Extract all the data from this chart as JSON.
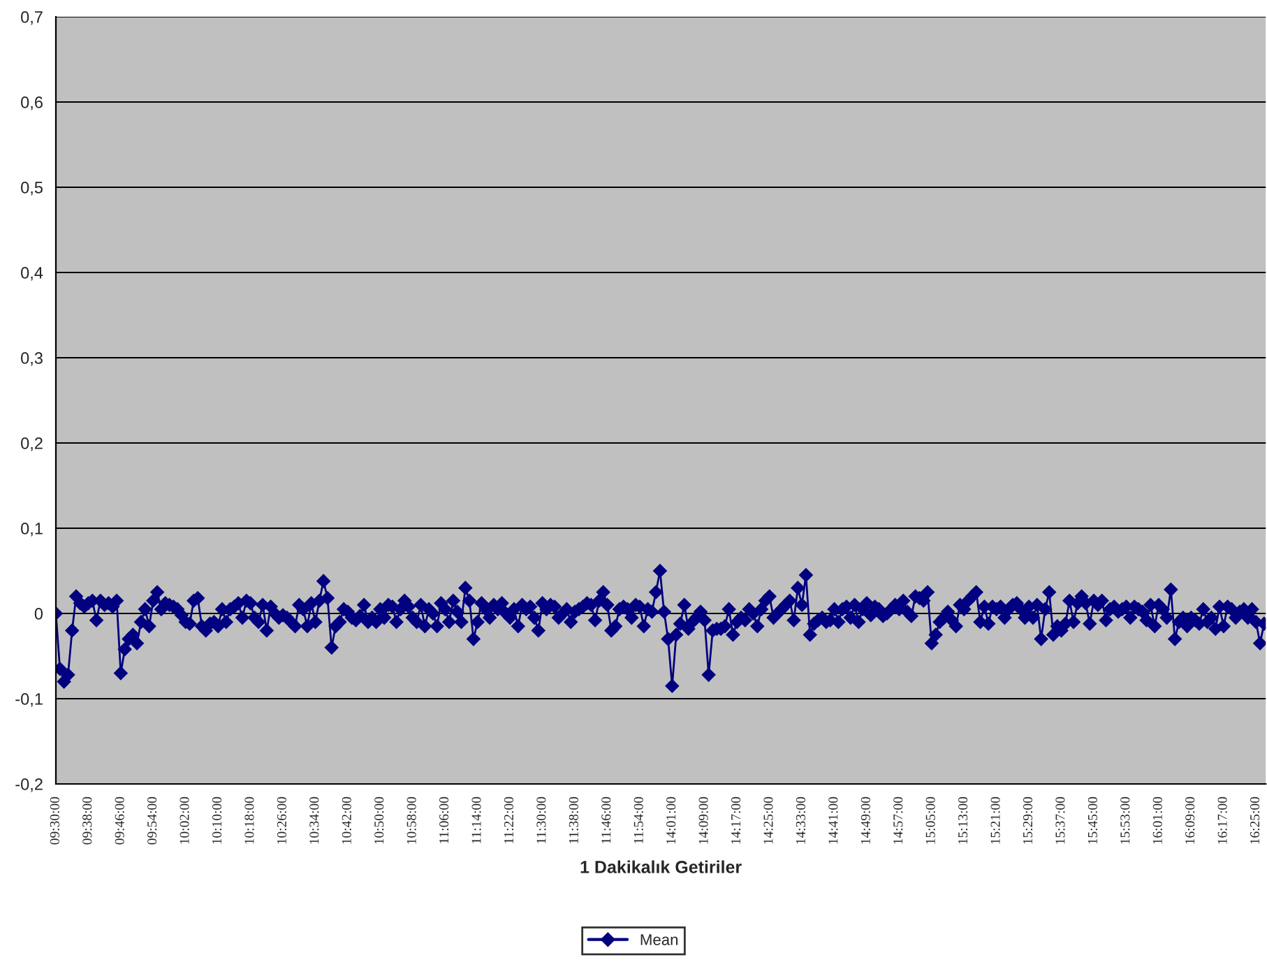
{
  "chart_data": {
    "type": "line",
    "xlabel": "1 Dakikalık Getiriler",
    "categories": [
      "09:30:00",
      null,
      null,
      null,
      null,
      null,
      null,
      null,
      "09:38:00",
      null,
      null,
      null,
      null,
      null,
      null,
      null,
      "09:46:00",
      null,
      null,
      null,
      null,
      null,
      null,
      null,
      "09:54:00",
      null,
      null,
      null,
      null,
      null,
      null,
      null,
      "10:02:00",
      null,
      null,
      null,
      null,
      null,
      null,
      null,
      "10:10:00",
      null,
      null,
      null,
      null,
      null,
      null,
      null,
      "10:18:00",
      null,
      null,
      null,
      null,
      null,
      null,
      null,
      "10:26:00",
      null,
      null,
      null,
      null,
      null,
      null,
      null,
      "10:34:00",
      null,
      null,
      null,
      null,
      null,
      null,
      null,
      "10:42:00",
      null,
      null,
      null,
      null,
      null,
      null,
      null,
      "10:50:00",
      null,
      null,
      null,
      null,
      null,
      null,
      null,
      "10:58:00",
      null,
      null,
      null,
      null,
      null,
      null,
      null,
      "11:06:00",
      null,
      null,
      null,
      null,
      null,
      null,
      null,
      "11:14:00",
      null,
      null,
      null,
      null,
      null,
      null,
      null,
      "11:22:00",
      null,
      null,
      null,
      null,
      null,
      null,
      null,
      "11:30:00",
      null,
      null,
      null,
      null,
      null,
      null,
      null,
      "11:38:00",
      null,
      null,
      null,
      null,
      null,
      null,
      null,
      "11:46:00",
      null,
      null,
      null,
      null,
      null,
      null,
      null,
      "11:54:00",
      null,
      null,
      null,
      null,
      null,
      null,
      null,
      "14:01:00",
      null,
      null,
      null,
      null,
      null,
      null,
      null,
      "14:09:00",
      null,
      null,
      null,
      null,
      null,
      null,
      null,
      "14:17:00",
      null,
      null,
      null,
      null,
      null,
      null,
      null,
      "14:25:00",
      null,
      null,
      null,
      null,
      null,
      null,
      null,
      "14:33:00",
      null,
      null,
      null,
      null,
      null,
      null,
      null,
      "14:41:00",
      null,
      null,
      null,
      null,
      null,
      null,
      null,
      "14:49:00",
      null,
      null,
      null,
      null,
      null,
      null,
      null,
      "14:57:00",
      null,
      null,
      null,
      null,
      null,
      null,
      null,
      "15:05:00",
      null,
      null,
      null,
      null,
      null,
      null,
      null,
      "15:13:00",
      null,
      null,
      null,
      null,
      null,
      null,
      null,
      "15:21:00",
      null,
      null,
      null,
      null,
      null,
      null,
      null,
      "15:29:00",
      null,
      null,
      null,
      null,
      null,
      null,
      null,
      "15:37:00",
      null,
      null,
      null,
      null,
      null,
      null,
      null,
      "15:45:00",
      null,
      null,
      null,
      null,
      null,
      null,
      null,
      "15:53:00",
      null,
      null,
      null,
      null,
      null,
      null,
      null,
      "16:01:00",
      null,
      null,
      null,
      null,
      null,
      null,
      null,
      "16:09:00",
      null,
      null,
      null,
      null,
      null,
      null,
      null,
      "16:17:00",
      null,
      null,
      null,
      null,
      null,
      null,
      null,
      "16:25:00",
      null,
      null
    ],
    "series": [
      {
        "name": "Mean",
        "color": "#000080",
        "values": [
          0,
          -0.065,
          -0.08,
          -0.072,
          -0.02,
          0.02,
          0.012,
          0.008,
          0.012,
          0.015,
          -0.008,
          0.015,
          0.01,
          0.012,
          0.008,
          0.015,
          -0.07,
          -0.042,
          -0.03,
          -0.025,
          -0.035,
          -0.01,
          0.005,
          -0.015,
          0.015,
          0.025,
          0.005,
          0.012,
          0.01,
          0.008,
          0.005,
          -0.002,
          -0.01,
          -0.012,
          0.015,
          0.018,
          -0.015,
          -0.02,
          -0.012,
          -0.01,
          -0.015,
          0.005,
          -0.01,
          0.005,
          0.008,
          0.012,
          -0.005,
          0.015,
          0.012,
          -0.005,
          -0.01,
          0.01,
          -0.02,
          0.008,
          0,
          -0.005,
          -0.002,
          -0.005,
          -0.01,
          -0.015,
          0.01,
          0.005,
          -0.015,
          0.012,
          -0.01,
          0.015,
          0.038,
          0.018,
          -0.04,
          -0.015,
          -0.01,
          0.005,
          0.002,
          -0.005,
          -0.008,
          -0.003,
          0.01,
          -0.01,
          -0.005,
          -0.01,
          0.005,
          -0.005,
          0.01,
          0.008,
          -0.01,
          0.005,
          0.015,
          0.008,
          -0.005,
          -0.01,
          0.01,
          -0.015,
          0.005,
          0,
          -0.015,
          0.012,
          0.005,
          -0.01,
          0.015,
          0.002,
          -0.01,
          0.03,
          0.015,
          -0.03,
          -0.01,
          0.012,
          0.005,
          -0.005,
          0.01,
          0.005,
          0.012,
          0,
          -0.005,
          0.005,
          -0.015,
          0.01,
          0.005,
          0.008,
          -0.005,
          -0.02,
          0.012,
          0.005,
          0.01,
          0.008,
          -0.005,
          0,
          0.005,
          -0.01,
          0.002,
          0.005,
          0.008,
          0.012,
          0.01,
          -0.008,
          0.015,
          0.025,
          0.01,
          -0.02,
          -0.015,
          0.005,
          0.008,
          0.005,
          -0.005,
          0.01,
          0.008,
          -0.015,
          0.005,
          0.002,
          0.025,
          0.05,
          0.002,
          -0.03,
          -0.085,
          -0.025,
          -0.012,
          0.01,
          -0.018,
          -0.01,
          -0.005,
          0.002,
          -0.008,
          -0.072,
          -0.02,
          -0.018,
          -0.018,
          -0.015,
          0.005,
          -0.025,
          -0.01,
          -0.005,
          -0.008,
          0.005,
          0,
          -0.015,
          0.005,
          0.015,
          0.02,
          -0.005,
          0,
          0.005,
          0.01,
          0.015,
          -0.008,
          0.03,
          0.01,
          0.045,
          -0.025,
          -0.012,
          -0.008,
          -0.005,
          -0.01,
          -0.008,
          0.005,
          -0.01,
          0.005,
          0.008,
          -0.005,
          0.01,
          -0.01,
          0.005,
          0.012,
          -0.002,
          0.008,
          0.005,
          -0.003,
          0,
          0.005,
          0.01,
          0.005,
          0.015,
          0.002,
          -0.003,
          0.02,
          0.018,
          0.015,
          0.025,
          -0.035,
          -0.025,
          -0.01,
          -0.005,
          0.002,
          -0.008,
          -0.015,
          0.01,
          0.005,
          0.015,
          0.02,
          0.025,
          -0.01,
          0.008,
          -0.012,
          0.008,
          0.005,
          0.008,
          -0.005,
          0.005,
          0.01,
          0.012,
          0.005,
          -0.005,
          0.008,
          -0.005,
          0.01,
          -0.03,
          0.005,
          0.025,
          -0.025,
          -0.015,
          -0.02,
          -0.012,
          0.015,
          -0.01,
          0.012,
          0.02,
          0.012,
          -0.012,
          0.015,
          0.01,
          0.015,
          -0.008,
          0.005,
          0.008,
          0.002,
          0.005,
          0.008,
          -0.005,
          0.008,
          0.005,
          0.002,
          -0.008,
          0.01,
          -0.015,
          0.01,
          0.005,
          -0.005,
          0.028,
          -0.03,
          -0.01,
          -0.005,
          -0.015,
          -0.005,
          -0.008,
          -0.012,
          0.005,
          -0.01,
          -0.005,
          -0.018,
          0.008,
          -0.015,
          0.008,
          0.005,
          -0.005,
          0.002,
          0.005,
          -0.005,
          0.005,
          -0.01,
          -0.035,
          -0.012
        ]
      }
    ],
    "ylim": [
      -0.2,
      0.7
    ],
    "yticks": [
      {
        "value": -0.2,
        "label": "-0,2"
      },
      {
        "value": -0.1,
        "label": "-0,1"
      },
      {
        "value": 0,
        "label": "0"
      },
      {
        "value": 0.1,
        "label": "0,1"
      },
      {
        "value": 0.2,
        "label": "0,2"
      },
      {
        "value": 0.3,
        "label": "0,3"
      },
      {
        "value": 0.4,
        "label": "0,4"
      },
      {
        "value": 0.5,
        "label": "0,5"
      },
      {
        "value": 0.6,
        "label": "0,6"
      },
      {
        "value": 0.7,
        "label": "0,7"
      }
    ],
    "grid": "y",
    "legend": "bottom",
    "marker": "diamond",
    "line_style": "solid"
  }
}
